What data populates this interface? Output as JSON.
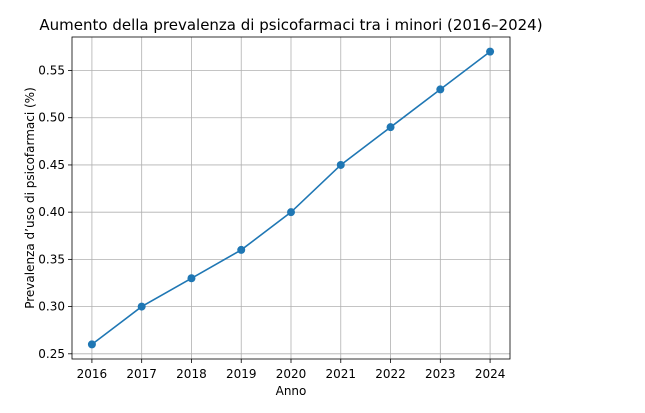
{
  "chart_data": {
    "type": "line",
    "title": "Aumento della prevalenza di psicofarmaci tra i minori (2016–2024)",
    "xlabel": "Anno",
    "ylabel": "Prevalenza d’uso di psicofarmaci (%)",
    "x": [
      2016,
      2017,
      2018,
      2019,
      2020,
      2021,
      2022,
      2023,
      2024
    ],
    "series": [
      {
        "values": [
          0.26,
          0.3,
          0.33,
          0.36,
          0.4,
          0.45,
          0.49,
          0.53,
          0.57
        ],
        "color": "#1f77b4",
        "marker": "circle"
      }
    ],
    "xlim": [
      2015.6,
      2024.4
    ],
    "ylim": [
      0.2445,
      0.5855
    ],
    "xticks": [
      "2016",
      "2017",
      "2018",
      "2019",
      "2020",
      "2021",
      "2022",
      "2023",
      "2024"
    ],
    "yticks": [
      "0.25",
      "0.30",
      "0.35",
      "0.40",
      "0.45",
      "0.50",
      "0.55"
    ],
    "grid": true,
    "legend": "none"
  }
}
